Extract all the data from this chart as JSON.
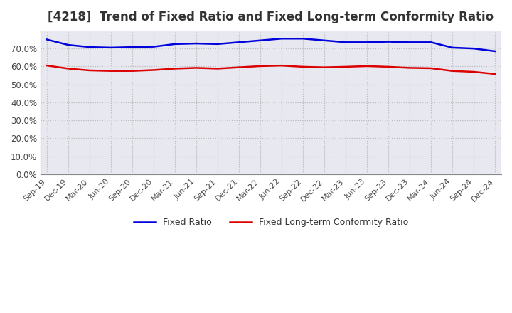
{
  "title": "[4218]  Trend of Fixed Ratio and Fixed Long-term Conformity Ratio",
  "title_fontsize": 12,
  "x_labels": [
    "Sep-19",
    "Dec-19",
    "Mar-20",
    "Jun-20",
    "Sep-20",
    "Dec-20",
    "Mar-21",
    "Jun-21",
    "Sep-21",
    "Dec-21",
    "Mar-22",
    "Jun-22",
    "Sep-22",
    "Dec-22",
    "Mar-23",
    "Jun-23",
    "Sep-23",
    "Dec-23",
    "Mar-24",
    "Jun-24",
    "Sep-24",
    "Dec-24"
  ],
  "fixed_ratio": [
    75.0,
    72.0,
    70.8,
    70.5,
    70.8,
    71.0,
    72.5,
    72.8,
    72.5,
    73.5,
    74.5,
    75.5,
    75.5,
    74.5,
    73.5,
    73.5,
    73.8,
    73.5,
    73.5,
    70.5,
    70.0,
    68.5
  ],
  "fixed_lt_ratio": [
    60.5,
    58.8,
    57.8,
    57.5,
    57.5,
    58.0,
    58.8,
    59.2,
    58.8,
    59.5,
    60.2,
    60.5,
    59.8,
    59.5,
    59.8,
    60.2,
    59.8,
    59.2,
    59.0,
    57.5,
    57.0,
    55.8
  ],
  "fixed_ratio_color": "#0000dd",
  "fixed_lt_ratio_color": "#dd0000",
  "ylim": [
    0,
    80
  ],
  "yticks": [
    0,
    10,
    20,
    30,
    40,
    50,
    60,
    70
  ],
  "grid_color": "#bbbbbb",
  "background_color": "#ffffff",
  "plot_bg_color": "#e8e8f0",
  "legend_fixed": "Fixed Ratio",
  "legend_lt": "Fixed Long-term Conformity Ratio",
  "title_color": "#333333"
}
